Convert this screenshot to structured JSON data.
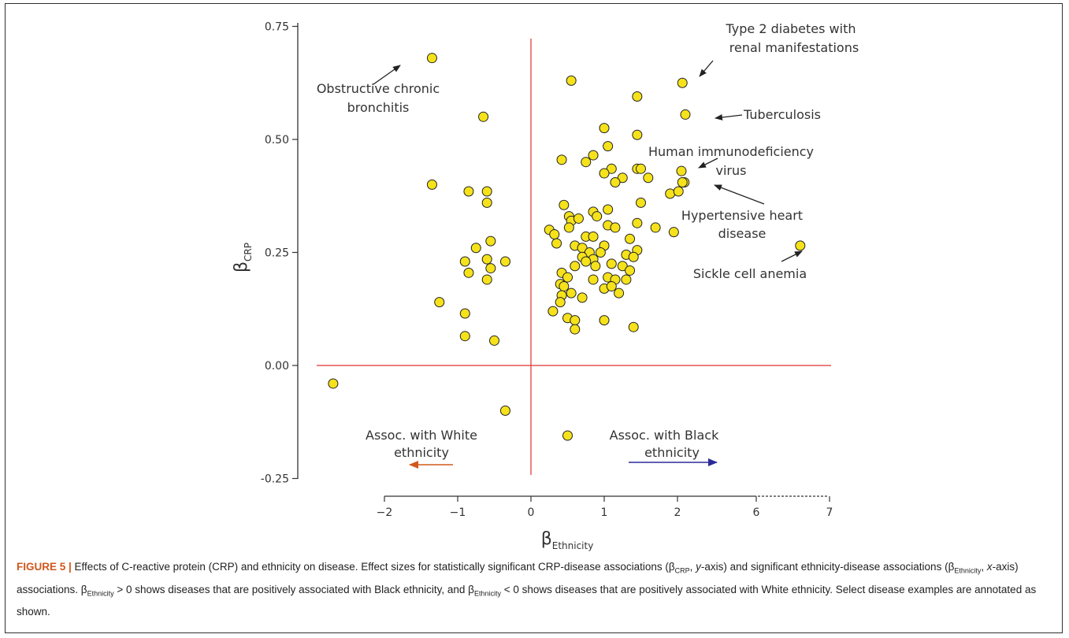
{
  "chart_data": {
    "type": "scatter",
    "xlabel": "β",
    "xlabel_sub": "Ethnicity",
    "ylabel": "β",
    "ylabel_sub": "CRP",
    "x_ticks": [
      "−2",
      "−1",
      "0",
      "1",
      "2",
      "6",
      "7"
    ],
    "y_ticks": [
      "0.75",
      "0.50",
      "0.25",
      "0.00",
      "-0.25"
    ],
    "ylim": [
      -0.25,
      0.75
    ],
    "xlim": [
      -2,
      7
    ],
    "x_axis_break": [
      2,
      6
    ],
    "reference_lines": {
      "x": 0,
      "y": 0,
      "color": "#e03030"
    },
    "point_color": "#f5e21b",
    "points": [
      [
        -1.35,
        0.68
      ],
      [
        -0.65,
        0.55
      ],
      [
        -1.35,
        0.4
      ],
      [
        -0.85,
        0.385
      ],
      [
        -0.6,
        0.385
      ],
      [
        -0.6,
        0.36
      ],
      [
        -0.55,
        0.275
      ],
      [
        -0.75,
        0.26
      ],
      [
        -0.6,
        0.235
      ],
      [
        -0.9,
        0.23
      ],
      [
        -0.55,
        0.215
      ],
      [
        -0.35,
        0.23
      ],
      [
        -0.85,
        0.205
      ],
      [
        -0.6,
        0.19
      ],
      [
        -1.25,
        0.14
      ],
      [
        -0.9,
        0.115
      ],
      [
        -0.9,
        0.065
      ],
      [
        -0.5,
        0.055
      ],
      [
        -2.7,
        -0.04
      ],
      [
        -0.35,
        -0.1
      ],
      [
        0.5,
        -0.155
      ],
      [
        0.55,
        0.63
      ],
      [
        1.45,
        0.595
      ],
      [
        1.0,
        0.525
      ],
      [
        1.45,
        0.51
      ],
      [
        1.05,
        0.485
      ],
      [
        0.85,
        0.465
      ],
      [
        0.42,
        0.455
      ],
      [
        0.75,
        0.45
      ],
      [
        1.1,
        0.435
      ],
      [
        1.45,
        0.435
      ],
      [
        1.0,
        0.425
      ],
      [
        1.25,
        0.415
      ],
      [
        1.6,
        0.415
      ],
      [
        1.15,
        0.405
      ],
      [
        1.5,
        0.435
      ],
      [
        1.9,
        0.38
      ],
      [
        2.05,
        0.385
      ],
      [
        1.5,
        0.36
      ],
      [
        0.45,
        0.355
      ],
      [
        1.05,
        0.345
      ],
      [
        0.85,
        0.34
      ],
      [
        0.52,
        0.33
      ],
      [
        0.9,
        0.33
      ],
      [
        0.55,
        0.32
      ],
      [
        0.65,
        0.325
      ],
      [
        1.45,
        0.315
      ],
      [
        1.05,
        0.31
      ],
      [
        1.15,
        0.305
      ],
      [
        1.7,
        0.305
      ],
      [
        0.52,
        0.305
      ],
      [
        0.25,
        0.3
      ],
      [
        0.32,
        0.29
      ],
      [
        0.75,
        0.285
      ],
      [
        0.85,
        0.285
      ],
      [
        1.95,
        0.295
      ],
      [
        0.35,
        0.27
      ],
      [
        0.6,
        0.265
      ],
      [
        0.7,
        0.26
      ],
      [
        1.0,
        0.265
      ],
      [
        1.45,
        0.255
      ],
      [
        1.35,
        0.28
      ],
      [
        0.8,
        0.25
      ],
      [
        0.95,
        0.25
      ],
      [
        1.3,
        0.245
      ],
      [
        0.7,
        0.24
      ],
      [
        1.4,
        0.24
      ],
      [
        0.85,
        0.235
      ],
      [
        0.75,
        0.23
      ],
      [
        1.1,
        0.225
      ],
      [
        1.25,
        0.22
      ],
      [
        0.88,
        0.22
      ],
      [
        0.6,
        0.22
      ],
      [
        1.35,
        0.21
      ],
      [
        0.42,
        0.205
      ],
      [
        1.05,
        0.195
      ],
      [
        1.3,
        0.19
      ],
      [
        0.5,
        0.195
      ],
      [
        0.85,
        0.19
      ],
      [
        1.15,
        0.19
      ],
      [
        0.4,
        0.18
      ],
      [
        0.45,
        0.175
      ],
      [
        1.0,
        0.17
      ],
      [
        1.1,
        0.175
      ],
      [
        1.2,
        0.16
      ],
      [
        0.55,
        0.16
      ],
      [
        0.42,
        0.155
      ],
      [
        0.7,
        0.15
      ],
      [
        0.4,
        0.14
      ],
      [
        0.3,
        0.12
      ],
      [
        0.5,
        0.105
      ],
      [
        0.6,
        0.1
      ],
      [
        1.0,
        0.1
      ],
      [
        0.6,
        0.08
      ],
      [
        1.4,
        0.085
      ]
    ],
    "highlighted_points": [
      {
        "label": "Type 2 diabetes with renal manifestations",
        "x": 2.25,
        "y": 0.625
      },
      {
        "label": "Tuberculosis",
        "x": 2.4,
        "y": 0.555
      },
      {
        "label": "Human immunodeficiency virus",
        "x": 2.2,
        "y": 0.43
      },
      {
        "label": "Hypertensive heart disease",
        "x": 2.35,
        "y": 0.405
      },
      {
        "label": "Hypertensive heart disease 2",
        "x": 2.25,
        "y": 0.405
      },
      {
        "label": "Sickle cell anemia",
        "x": 6.6,
        "y": 0.265
      }
    ],
    "annotations": {
      "copd_line1": "Obstructive chronic",
      "copd_line2": "bronchitis",
      "t2d_line1": "Type 2 diabetes with",
      "t2d_line2": "renal manifestations",
      "tb": "Tuberculosis",
      "hiv_line1": "Human immunodeficiency",
      "hiv_line2": "virus",
      "hhd_line1": "Hypertensive heart",
      "hhd_line2": "disease",
      "sickle": "Sickle cell anemia",
      "white_line1": "Assoc. with White",
      "white_line2": "ethnicity",
      "black_line1": "Assoc. with Black",
      "black_line2": "ethnicity"
    },
    "arrow_colors": {
      "white": "#d0581c",
      "black": "#2b2b9a",
      "pointer": "#222222"
    }
  },
  "caption": {
    "label": "FIGURE 5 |",
    "text_a": " Effects of C-reactive protein (CRP) and ethnicity on disease. Effect sizes for statistically significant CRP-disease associations (β",
    "sub_crp": "CRP",
    "text_b": ", ",
    "y_axis": "y",
    "text_c": "-axis) and significant ethnicity-disease associations (β",
    "sub_eth1": "Ethnicity",
    "text_d": ", ",
    "x_axis": "x",
    "text_e": "-axis) associations. β",
    "sub_eth2": "Ethnicity",
    "text_f": " > 0 shows diseases that are positively associated with Black ethnicity, and β",
    "sub_eth3": "Ethnicity",
    "text_g": " < 0 shows diseases that are positively associated with White ethnicity. Select disease examples are annotated as shown."
  }
}
